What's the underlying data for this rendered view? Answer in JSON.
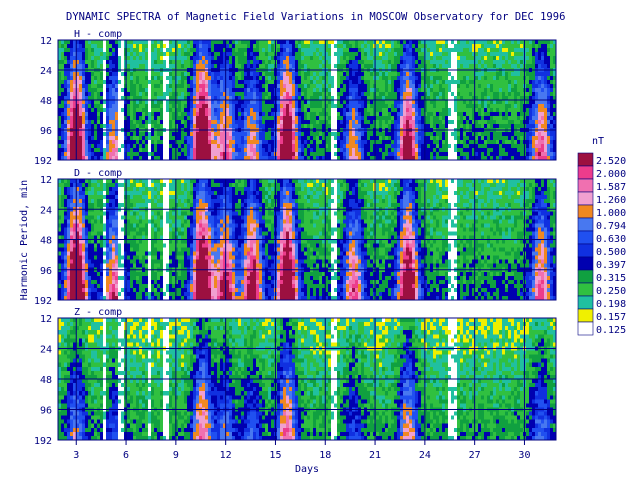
{
  "chart_data": {
    "type": "heatmap",
    "title": "DYNAMIC SPECTRA of Magnetic Field Variations in MOSCOW Observatory for DEC 1996",
    "xlabel": "Days",
    "ylabel": "Harmonic Period, min",
    "x_ticks": [
      3,
      6,
      9,
      12,
      15,
      18,
      21,
      24,
      27,
      30
    ],
    "xlim": [
      1.9,
      31.9
    ],
    "y_ticks": [
      12,
      24,
      48,
      96,
      192
    ],
    "y_scale": "log2",
    "panels": [
      {
        "label": "H - comp"
      },
      {
        "label": "D - comp"
      },
      {
        "label": "Z - comp"
      }
    ],
    "colorbar": {
      "unit": "nT",
      "levels": [
        "2.520",
        "2.000",
        "1.587",
        "1.260",
        "1.000",
        "0.794",
        "0.630",
        "0.500",
        "0.397",
        "0.315",
        "0.250",
        "0.198",
        "0.157",
        "0.125"
      ],
      "colors": [
        "#9c1040",
        "#ec3c8c",
        "#f070b0",
        "#f0a0d0",
        "#f08820",
        "#4878f0",
        "#2050f0",
        "#1030e0",
        "#0000b0",
        "#10a040",
        "#30c040",
        "#20c0a0",
        "#f0f000",
        "#ffffff"
      ]
    },
    "data_gaps_days": [
      [
        4.6,
        4.85
      ],
      [
        5.6,
        5.85
      ],
      [
        7.3,
        7.55
      ],
      [
        8.3,
        8.6
      ],
      [
        18.4,
        18.7
      ],
      [
        25.4,
        25.9
      ]
    ],
    "activity_bursts": [
      {
        "day": 3.0,
        "intensity": [
          0.9,
          1.0,
          0.35
        ]
      },
      {
        "day": 5.3,
        "intensity": [
          0.45,
          0.55,
          0.2
        ]
      },
      {
        "day": 10.6,
        "intensity": [
          1.0,
          1.0,
          0.55
        ]
      },
      {
        "day": 12.0,
        "intensity": [
          0.55,
          0.7,
          0.3
        ]
      },
      {
        "day": 13.6,
        "intensity": [
          0.45,
          0.75,
          0.25
        ]
      },
      {
        "day": 15.7,
        "intensity": [
          0.9,
          0.95,
          0.55
        ]
      },
      {
        "day": 19.7,
        "intensity": [
          0.4,
          0.55,
          0.2
        ]
      },
      {
        "day": 23.0,
        "intensity": [
          0.75,
          0.85,
          0.45
        ]
      },
      {
        "day": 31.0,
        "intensity": [
          0.55,
          0.55,
          0.3
        ]
      }
    ]
  }
}
